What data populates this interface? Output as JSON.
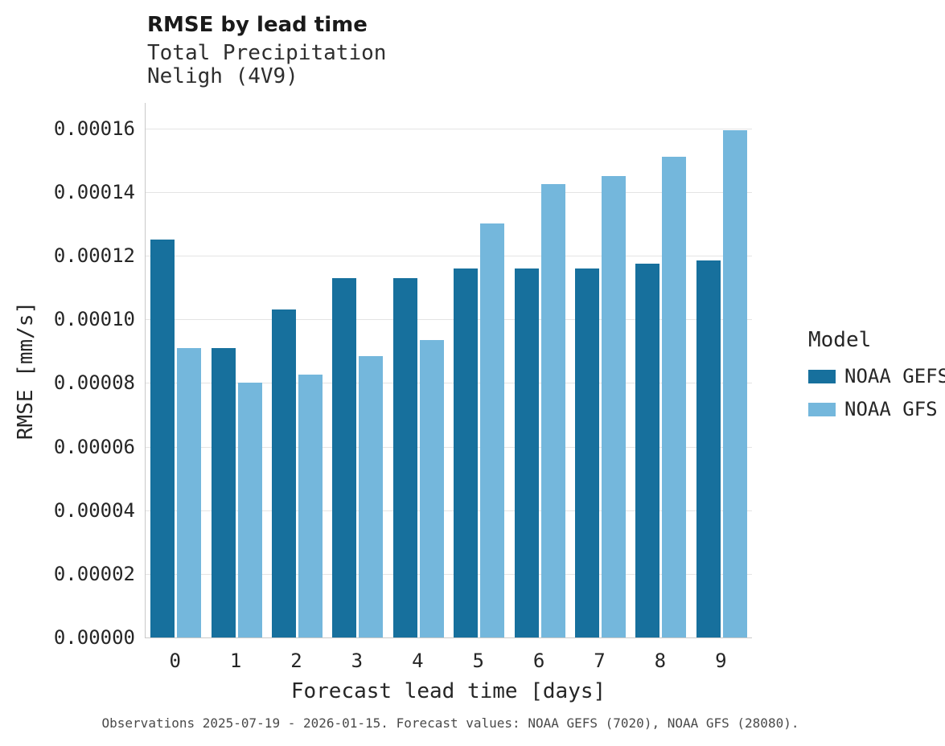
{
  "header": {
    "title": "RMSE by lead time",
    "subtitle_line1": "Total Precipitation",
    "subtitle_line2": "Neligh (4V9)"
  },
  "legend": {
    "title": "Model",
    "entries": [
      "NOAA GEFS",
      "NOAA GFS"
    ]
  },
  "caption": "Observations 2025-07-19 - 2026-01-15. Forecast values: NOAA GEFS (7020), NOAA GFS (28080).",
  "chart_data": {
    "type": "bar",
    "title": "RMSE by lead time",
    "subtitle": "Total Precipitation / Neligh (4V9)",
    "xlabel": "Forecast lead time [days]",
    "ylabel": "RMSE [mm/s]",
    "categories": [
      "0",
      "1",
      "2",
      "3",
      "4",
      "5",
      "6",
      "7",
      "8",
      "9"
    ],
    "series": [
      {
        "name": "NOAA GEFS",
        "color": "#17709d",
        "values": [
          0.000125,
          9.1e-05,
          0.000103,
          0.000113,
          0.000113,
          0.000116,
          0.000116,
          0.000116,
          0.0001175,
          0.0001185
        ]
      },
      {
        "name": "NOAA GFS",
        "color": "#74b7dc",
        "values": [
          9.1e-05,
          8e-05,
          8.25e-05,
          8.85e-05,
          9.35e-05,
          0.00013,
          0.0001425,
          0.000145,
          0.000151,
          0.0001595
        ]
      }
    ],
    "ylim": [
      0,
      0.00016
    ],
    "ytick_labels": [
      "0.00000",
      "0.00002",
      "0.00004",
      "0.00006",
      "0.00008",
      "0.00010",
      "0.00012",
      "0.00014",
      "0.00016"
    ],
    "grid": "horizontal-only",
    "legend_position": "right",
    "legend_title": "Model"
  }
}
